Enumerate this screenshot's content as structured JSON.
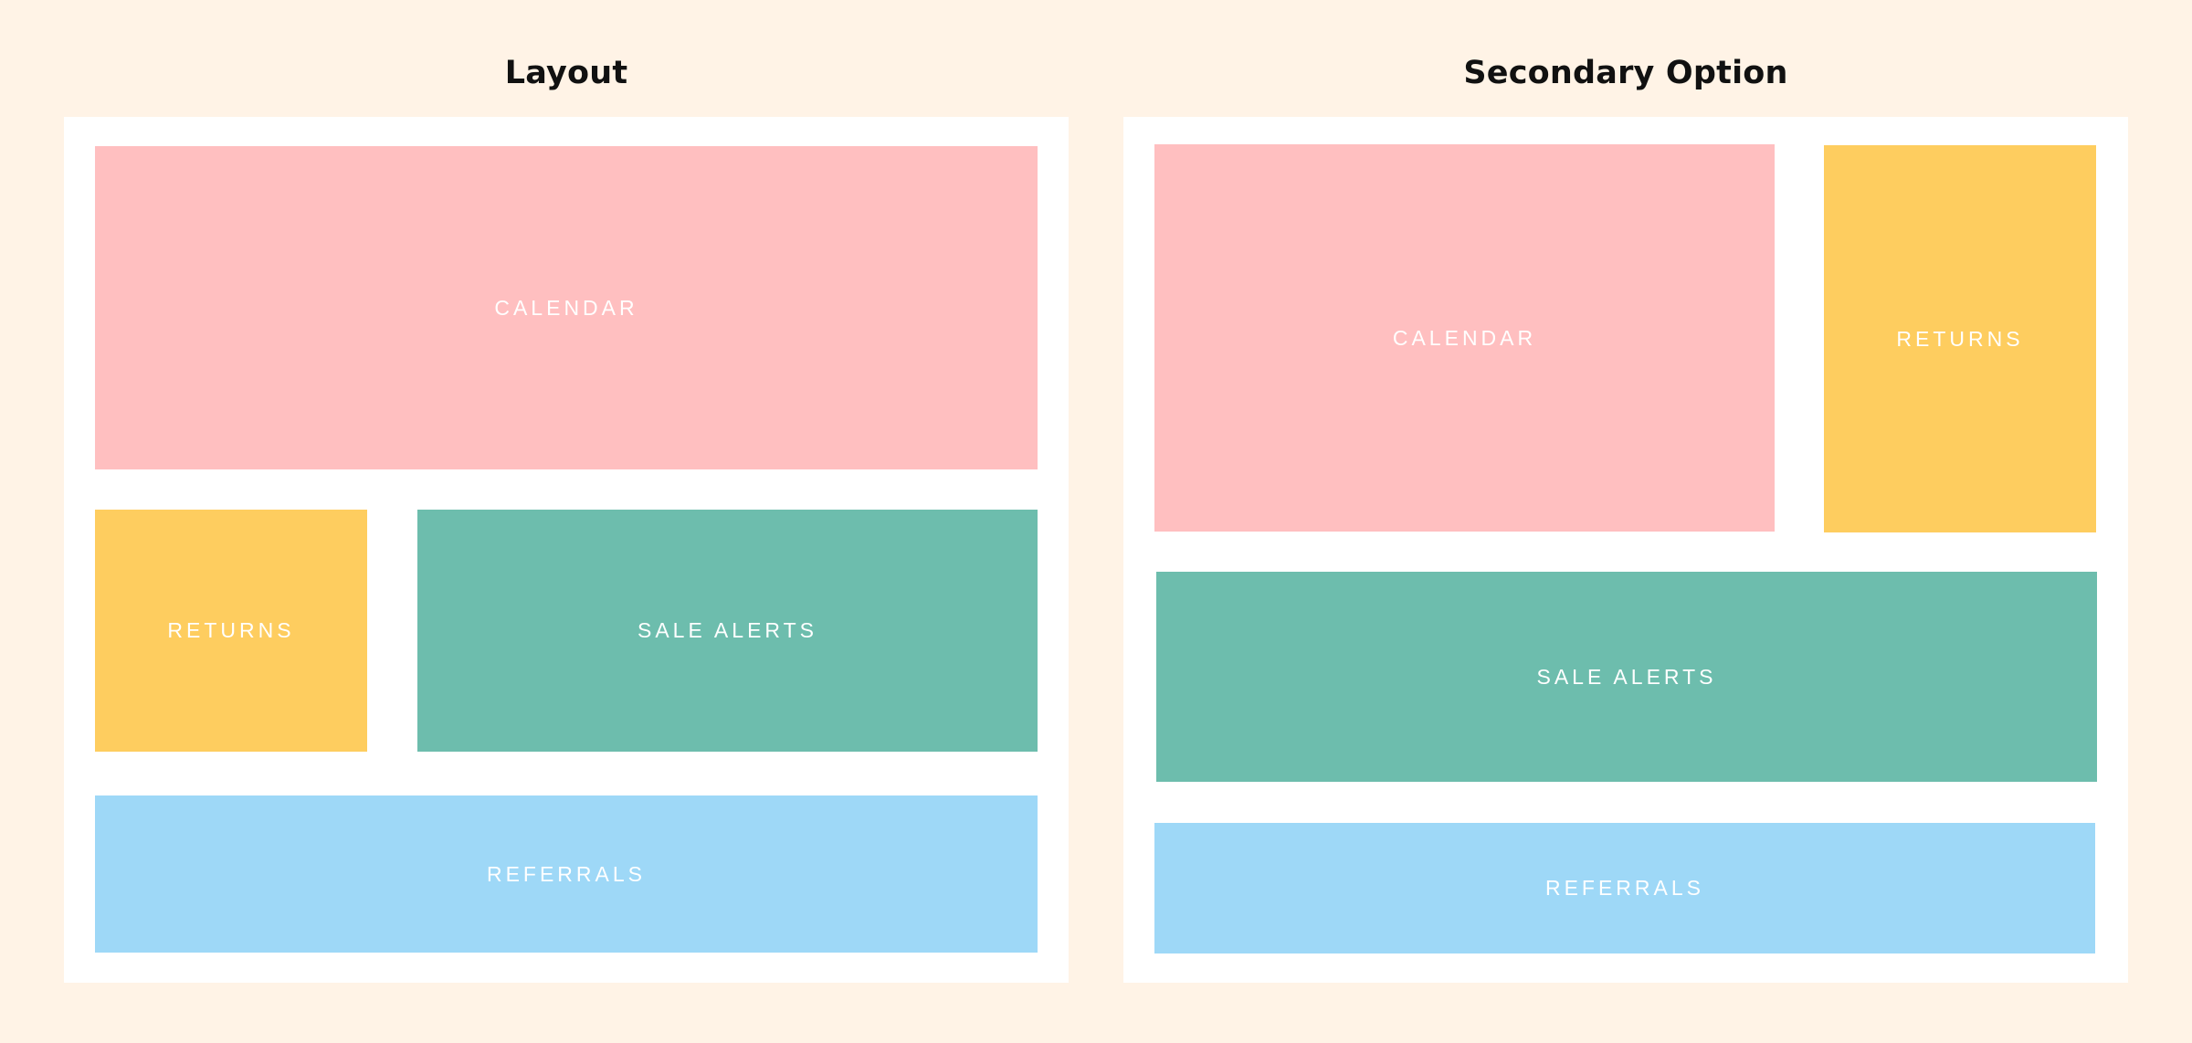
{
  "colors": {
    "background": "#fff3e6",
    "frame": "#ffffff",
    "calendar": "#ffbfc0",
    "returns": "#fecd5f",
    "sale_alerts": "#6dbdad",
    "referrals": "#9ed8f7",
    "label": "#ffffff",
    "title": "#111111"
  },
  "panels": [
    {
      "title": "Layout",
      "blocks": {
        "calendar": "CALENDAR",
        "returns": "RETURNS",
        "sale_alerts": "SALE ALERTS",
        "referrals": "REFERRALS"
      }
    },
    {
      "title": "Secondary Option",
      "blocks": {
        "calendar": "CALENDAR",
        "returns": "RETURNS",
        "sale_alerts": "SALE ALERTS",
        "referrals": "REFERRALS"
      }
    }
  ]
}
